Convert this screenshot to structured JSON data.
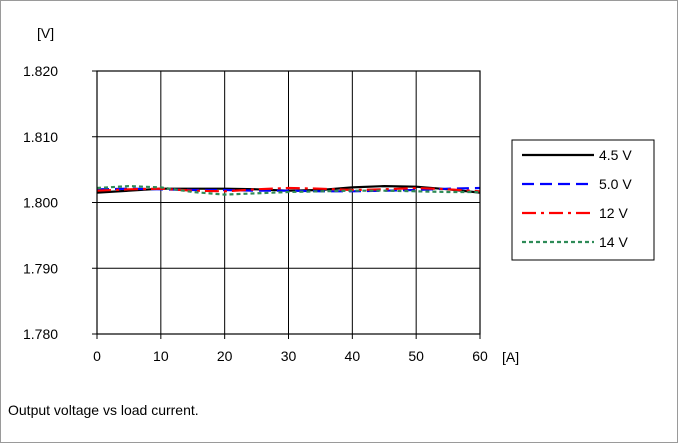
{
  "caption": "Output voltage vs load current.",
  "chart_data": {
    "type": "line",
    "ylabel": "[V]",
    "xlabel": "[A]",
    "xlim": [
      0,
      60
    ],
    "ylim": [
      1.78,
      1.82
    ],
    "x_ticks": [
      "0",
      "10",
      "20",
      "30",
      "40",
      "50",
      "60"
    ],
    "y_ticks": [
      "1.780",
      "1.790",
      "1.800",
      "1.810",
      "1.820"
    ],
    "grid": true,
    "legend_position": "right",
    "x": [
      0,
      5,
      10,
      15,
      20,
      25,
      30,
      35,
      40,
      45,
      50,
      55,
      60
    ],
    "series": [
      {
        "name": "4.5 V",
        "color": "#000000",
        "dash": "solid",
        "values": [
          1.8015,
          1.8018,
          1.8021,
          1.8021,
          1.8021,
          1.802,
          1.8018,
          1.8019,
          1.8023,
          1.8025,
          1.8024,
          1.802,
          1.8015
        ]
      },
      {
        "name": "5.0 V",
        "color": "#0000ff",
        "dash": "dash",
        "values": [
          1.802,
          1.8021,
          1.802,
          1.8019,
          1.8019,
          1.8018,
          1.8018,
          1.8017,
          1.8017,
          1.8018,
          1.8019,
          1.8021,
          1.8022
        ]
      },
      {
        "name": "12 V",
        "color": "#ff0000",
        "dash": "dashdot",
        "values": [
          1.8018,
          1.802,
          1.8021,
          1.8018,
          1.8017,
          1.802,
          1.8022,
          1.8021,
          1.8019,
          1.802,
          1.8022,
          1.802,
          1.8017
        ]
      },
      {
        "name": "14 V",
        "color": "#2e8b57",
        "dash": "dot",
        "values": [
          1.8022,
          1.8025,
          1.8023,
          1.8016,
          1.8012,
          1.8014,
          1.8016,
          1.8017,
          1.8018,
          1.8018,
          1.8017,
          1.8016,
          1.8016
        ]
      }
    ]
  }
}
